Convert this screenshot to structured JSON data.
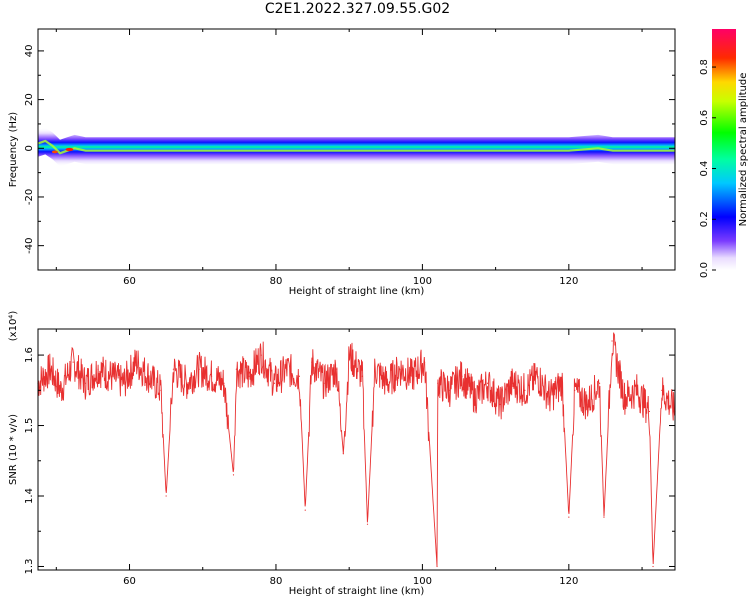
{
  "title": "C2E1.2022.327.09.55.G02",
  "chart_data": [
    {
      "type": "heatmap",
      "xlabel": "Height of straight line (km)",
      "ylabel": "Frequency (Hz)",
      "xlim": [
        47.5,
        134.5
      ],
      "ylim": [
        -50,
        49
      ],
      "xticks": [
        60,
        80,
        100,
        120
      ],
      "yticks": [
        -40,
        -20,
        0,
        20,
        40
      ],
      "colorbar": {
        "label": "Normalized spectral amplitude",
        "range": [
          0.0,
          0.95
        ],
        "ticks": [
          0.0,
          0.2,
          0.4,
          0.6,
          0.8
        ],
        "colormap": "rainbow"
      },
      "ridge": {
        "description_free": true,
        "frequency_center_hz": [
          [
            47.5,
            2
          ],
          [
            48.5,
            3
          ],
          [
            49.5,
            1
          ],
          [
            50.5,
            -2
          ],
          [
            51.5,
            -1
          ],
          [
            52.5,
            0
          ],
          [
            54,
            -1
          ],
          [
            70,
            -1
          ],
          [
            90,
            -1
          ],
          [
            110,
            -1
          ],
          [
            120,
            -1
          ],
          [
            124,
            0
          ],
          [
            126,
            -1
          ],
          [
            130,
            -1
          ],
          [
            134.5,
            -1
          ]
        ]
      }
    },
    {
      "type": "line",
      "xlabel": "Height of straight line (km)",
      "ylabel": "SNR (10 * v/v)",
      "y_multiplier": "(x10⁴)",
      "xlim": [
        47.5,
        134.5
      ],
      "ylim": [
        1.295,
        1.637
      ],
      "xticks": [
        60,
        80,
        100,
        120
      ],
      "yticks": [
        1.3,
        1.4,
        1.5,
        1.6
      ],
      "series": [
        {
          "color": "#e83030",
          "x": [
            47.5,
            49.2,
            50.6,
            52.3,
            54.0,
            55.7,
            57.5,
            59.2,
            60.9,
            62.6,
            64.3,
            65.0,
            66.0,
            67.8,
            69.5,
            71.2,
            72.9,
            74.2,
            74.6,
            76.3,
            78.0,
            79.8,
            81.5,
            83.2,
            84.0,
            84.9,
            86.6,
            88.3,
            89.2,
            90.0,
            91.8,
            92.5,
            93.5,
            95.2,
            96.9,
            98.6,
            100.3,
            102.0,
            102.1,
            103.7,
            105.4,
            107.2,
            108.9,
            110.6,
            112.3,
            114.0,
            115.7,
            117.4,
            119.1,
            120.0,
            120.8,
            122.5,
            124.2,
            124.8,
            125.9,
            127.6,
            129.3,
            131.0,
            131.5,
            132.7,
            134.5
          ],
          "values": [
            1.56,
            1.58,
            1.55,
            1.59,
            1.56,
            1.58,
            1.57,
            1.56,
            1.59,
            1.57,
            1.55,
            1.4,
            1.58,
            1.56,
            1.58,
            1.57,
            1.56,
            1.43,
            1.58,
            1.57,
            1.6,
            1.56,
            1.58,
            1.57,
            1.38,
            1.59,
            1.56,
            1.58,
            1.46,
            1.6,
            1.57,
            1.36,
            1.58,
            1.56,
            1.58,
            1.57,
            1.59,
            1.3,
            1.56,
            1.55,
            1.57,
            1.54,
            1.56,
            1.53,
            1.56,
            1.55,
            1.57,
            1.54,
            1.56,
            1.37,
            1.55,
            1.53,
            1.56,
            1.37,
            1.62,
            1.54,
            1.55,
            1.52,
            1.3,
            1.55,
            1.52
          ]
        }
      ]
    }
  ]
}
